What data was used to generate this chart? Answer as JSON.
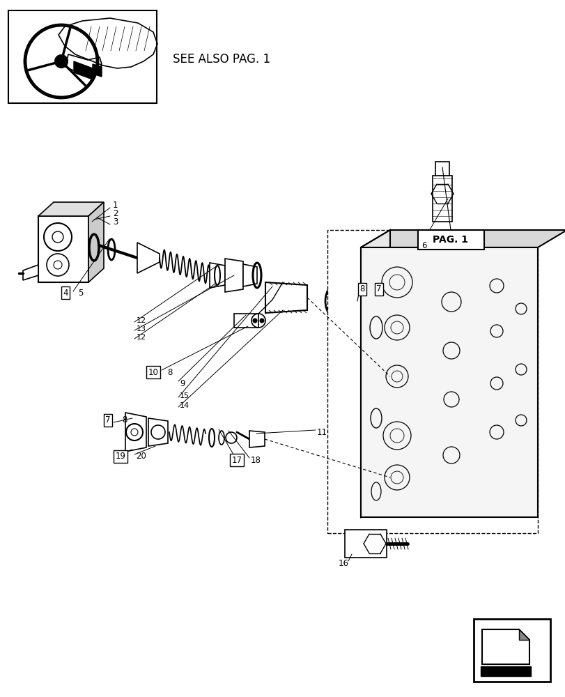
{
  "bg_color": "#ffffff",
  "fig_width": 8.12,
  "fig_height": 10.0,
  "see_also_text": "SEE ALSO PAG. 1",
  "pag1_label": "PAG. 1",
  "title_fontsize": 11.0,
  "label_fontsize": 8.5,
  "small_label_fontsize": 7.5,
  "part_color": "#000000",
  "line_color": "#000000"
}
